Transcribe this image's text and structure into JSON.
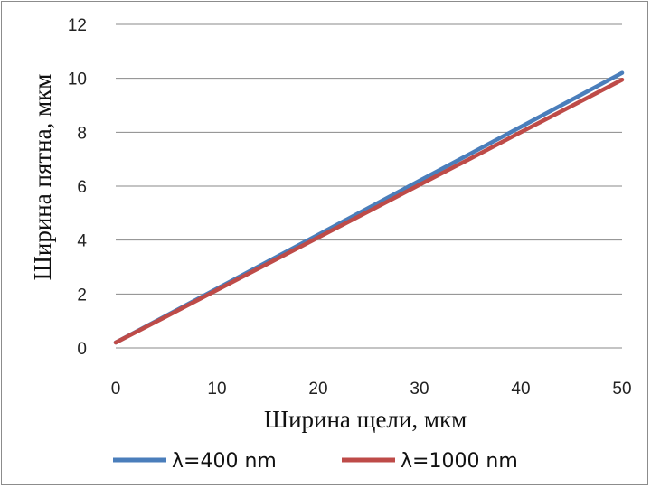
{
  "chart_data": {
    "type": "line",
    "xlabel": "Ширина щели, мкм",
    "ylabel": "Ширина пятна, мкм",
    "xlim": [
      0,
      50
    ],
    "ylim": [
      0,
      12
    ],
    "x_ticks": [
      "0",
      "10",
      "20",
      "30",
      "40",
      "50"
    ],
    "y_ticks": [
      "0",
      "2",
      "4",
      "6",
      "8",
      "10",
      "12"
    ],
    "grid": "horizontal",
    "legend_position": "bottom",
    "series": [
      {
        "name": "λ=400 nm",
        "color": "#4a7ebb",
        "x": [
          0,
          5,
          10,
          15,
          20,
          25,
          30,
          35,
          40,
          45,
          50
        ],
        "y": [
          0.2,
          1.2,
          2.2,
          3.2,
          4.2,
          5.2,
          6.2,
          7.2,
          8.2,
          9.2,
          10.2
        ]
      },
      {
        "name": "λ=1000 nm",
        "color": "#be4b48",
        "x": [
          0,
          5,
          10,
          15,
          20,
          25,
          30,
          35,
          40,
          45,
          50
        ],
        "y": [
          0.2,
          1.17,
          2.15,
          3.12,
          4.1,
          5.07,
          6.05,
          7.02,
          8.0,
          8.97,
          9.95
        ]
      }
    ]
  }
}
